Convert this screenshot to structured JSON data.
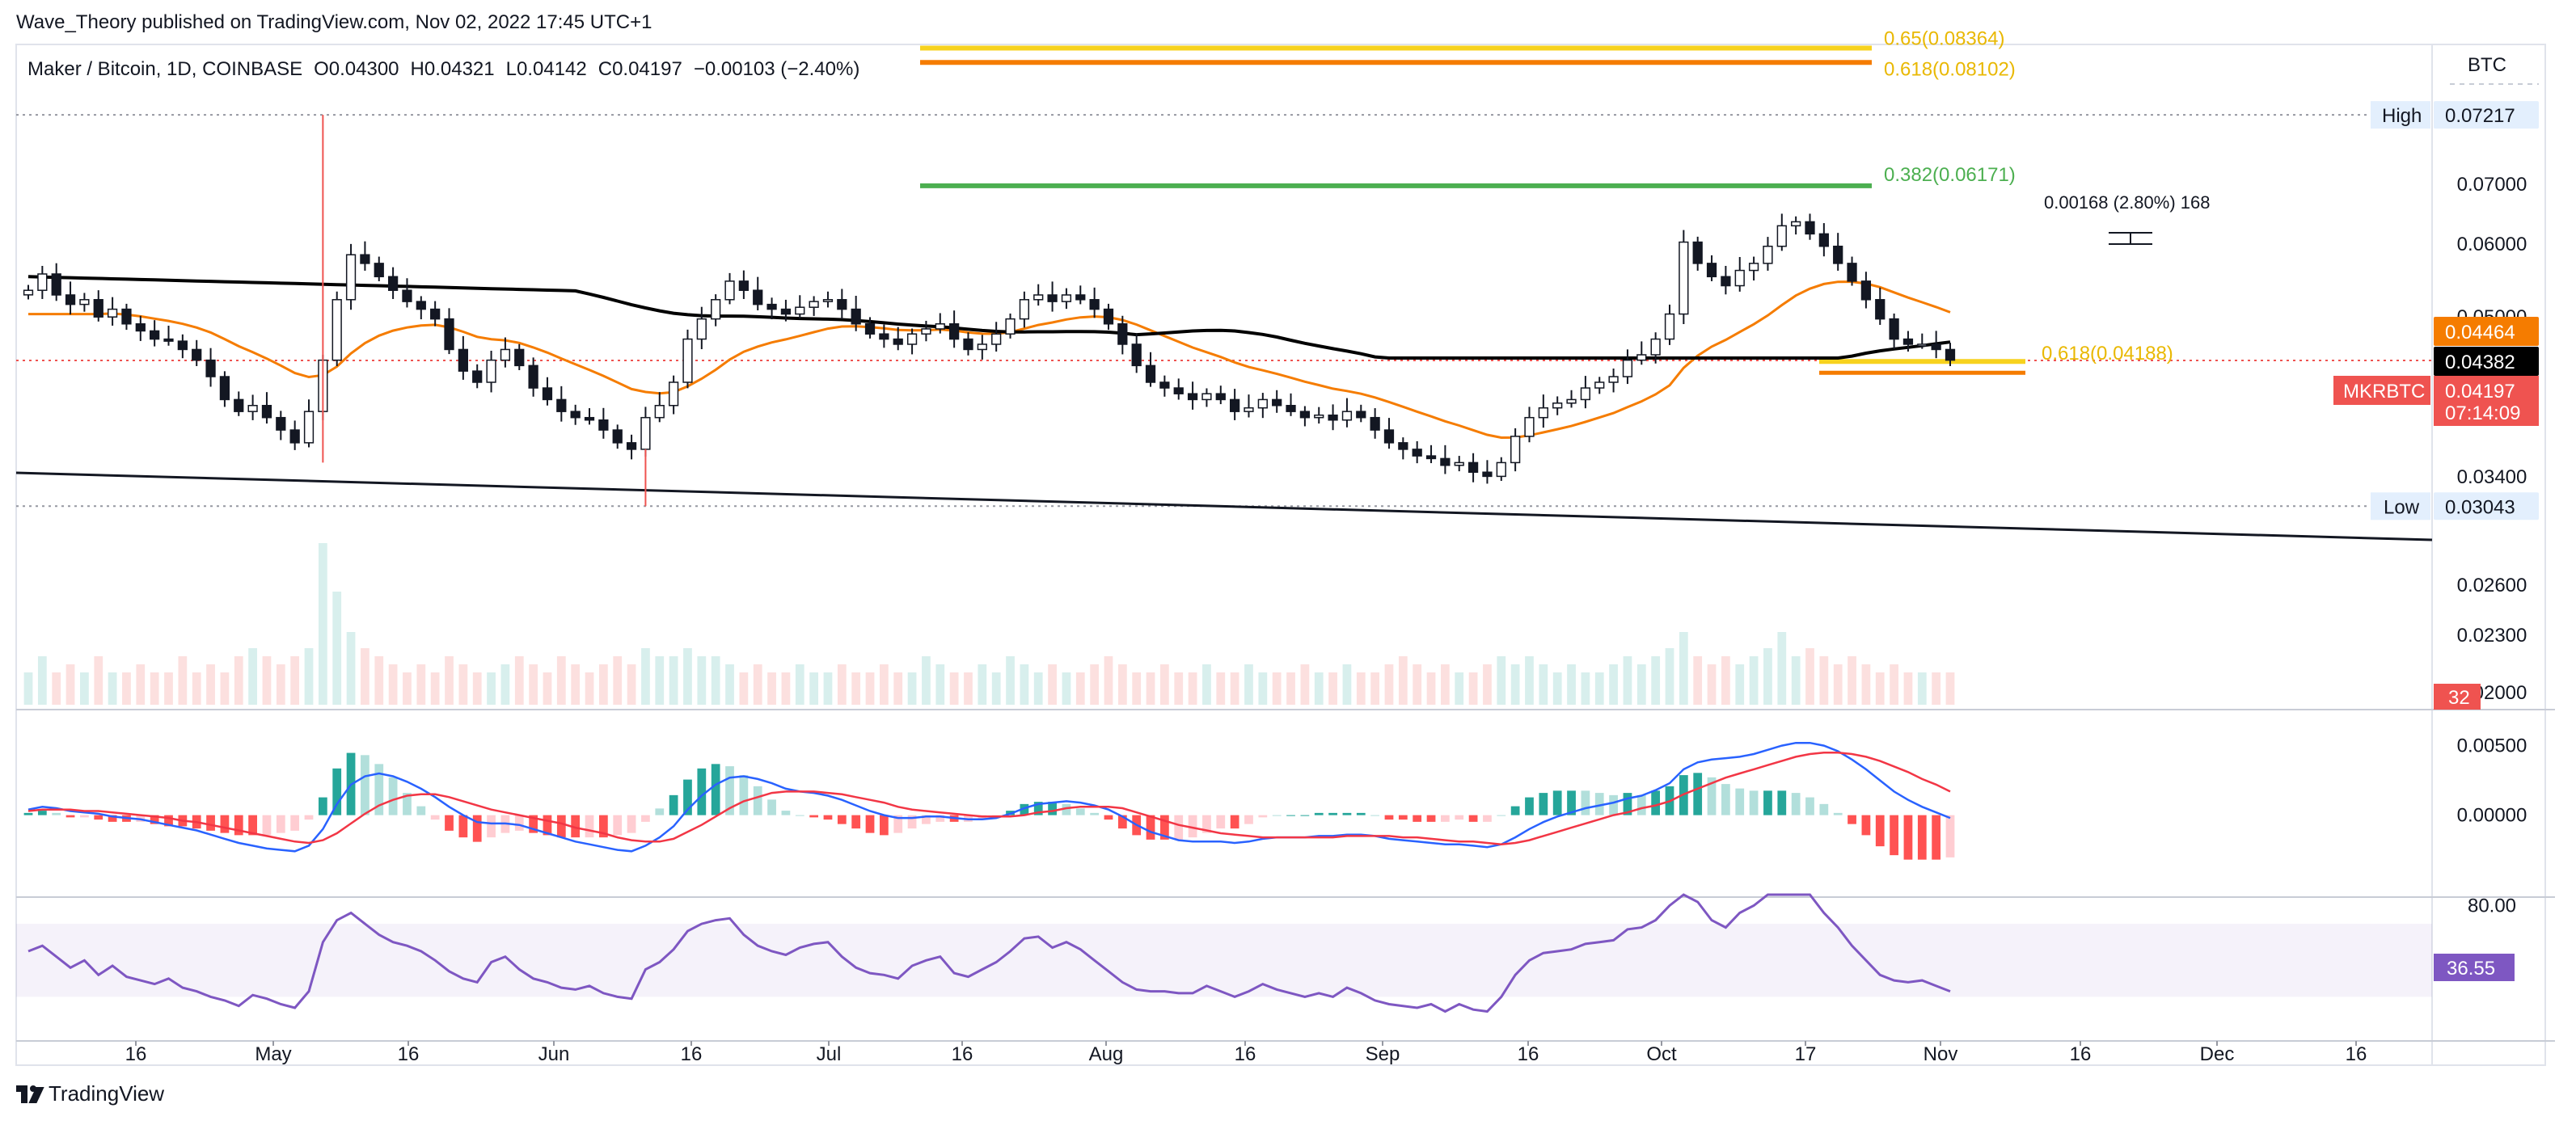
{
  "header": {
    "published": "Wave_Theory published on TradingView.com, Nov 02, 2022 17:45 UTC+1"
  },
  "symbol_info": {
    "name": "Maker / Bitcoin, 1D, COINBASE",
    "open": "O0.04300",
    "high": "H0.04321",
    "low": "L0.04142",
    "close": "C0.04197",
    "change": "−0.00103 (−2.40%)"
  },
  "footer": {
    "brand": "TradingView"
  },
  "colors": {
    "up": "#26a69a",
    "down": "#ef5350",
    "ema": "#f57c00",
    "sma": "#000000",
    "fib_gold": "#f7d21e",
    "fib_orange": "#f57c00",
    "fib_green": "#4caf50",
    "macd": "#2962ff",
    "signal": "#f23645",
    "rsi": "#7e57c2"
  },
  "chart_data": [
    {
      "type": "candlestick",
      "pane": "price",
      "title": "Maker / Bitcoin, 1D, COINBASE",
      "currency": "BTC",
      "scale": "log",
      "x_ticks": [
        "16",
        "May",
        "16",
        "Jun",
        "16",
        "Jul",
        "16",
        "Aug",
        "16",
        "Sep",
        "16",
        "Oct",
        "17",
        "Nov",
        "16",
        "Dec",
        "16"
      ],
      "y_ticks": [
        "0.07000",
        "0.06000",
        "0.05000",
        "0.03400",
        "0.02600",
        "0.02300",
        "0.02000"
      ],
      "labels": {
        "high_label": "High",
        "high_value": "0.07217",
        "low_label": "Low",
        "low_value": "0.03043",
        "ema_value": "0.04464",
        "sma_value": "0.04382",
        "symbol_tag": "MKRBTC",
        "last_price": "0.04197",
        "countdown": "07:14:09"
      },
      "fib_levels": [
        {
          "label": "0.65(0.08364)",
          "ratio": 0.65,
          "value": 0.08364
        },
        {
          "label": "0.618(0.08102)",
          "ratio": 0.618,
          "value": 0.08102
        },
        {
          "label": "0.382(0.06171)",
          "ratio": 0.382,
          "value": 0.06171
        },
        {
          "label": "0.618(0.04188)",
          "ratio": 0.618,
          "value": 0.04188
        }
      ],
      "annotation": "0.00168 (2.80%) 168",
      "high": 0.07217,
      "low": 0.03043,
      "last": 0.04197,
      "ema": 0.04464,
      "sma": 0.04382,
      "closes": [
        0.049,
        0.0508,
        0.0485,
        0.0475,
        0.048,
        0.0462,
        0.047,
        0.0455,
        0.0448,
        0.044,
        0.0438,
        0.043,
        0.042,
        0.0405,
        0.0385,
        0.0375,
        0.038,
        0.037,
        0.036,
        0.035,
        0.0375,
        0.042,
        0.048,
        0.053,
        0.052,
        0.0505,
        0.049,
        0.0478,
        0.047,
        0.046,
        0.043,
        0.041,
        0.04,
        0.042,
        0.043,
        0.0415,
        0.0395,
        0.0385,
        0.0375,
        0.037,
        0.0368,
        0.036,
        0.035,
        0.0345,
        0.037,
        0.038,
        0.04,
        0.044,
        0.046,
        0.048,
        0.05,
        0.049,
        0.0475,
        0.047,
        0.0465,
        0.0472,
        0.0478,
        0.048,
        0.047,
        0.0455,
        0.0445,
        0.044,
        0.0435,
        0.0445,
        0.045,
        0.0455,
        0.044,
        0.043,
        0.0435,
        0.0445,
        0.046,
        0.048,
        0.0485,
        0.0478,
        0.0485,
        0.048,
        0.047,
        0.0455,
        0.0435,
        0.0415,
        0.04,
        0.0395,
        0.039,
        0.0385,
        0.039,
        0.0385,
        0.0375,
        0.0378,
        0.0385,
        0.038,
        0.0375,
        0.037,
        0.0372,
        0.0368,
        0.0375,
        0.037,
        0.036,
        0.035,
        0.0345,
        0.034,
        0.0338,
        0.0333,
        0.0335,
        0.0328,
        0.0325,
        0.0335,
        0.0355,
        0.037,
        0.0378,
        0.0382,
        0.0385,
        0.0395,
        0.04,
        0.0405,
        0.042,
        0.0425,
        0.044,
        0.0465,
        0.0545,
        0.052,
        0.0505,
        0.0495,
        0.0512,
        0.052,
        0.054,
        0.0565,
        0.057,
        0.0555,
        0.054,
        0.052,
        0.05,
        0.048,
        0.046,
        0.044,
        0.0435,
        0.0435,
        0.043,
        0.042
      ],
      "volume": [
        0.2,
        0.3,
        0.2,
        0.25,
        0.2,
        0.3,
        0.2,
        0.2,
        0.25,
        0.2,
        0.2,
        0.3,
        0.2,
        0.25,
        0.2,
        0.3,
        0.35,
        0.3,
        0.25,
        0.3,
        0.35,
        1.0,
        0.7,
        0.45,
        0.35,
        0.3,
        0.25,
        0.2,
        0.25,
        0.2,
        0.3,
        0.25,
        0.2,
        0.2,
        0.25,
        0.3,
        0.25,
        0.2,
        0.3,
        0.25,
        0.2,
        0.25,
        0.3,
        0.25,
        0.35,
        0.3,
        0.3,
        0.35,
        0.3,
        0.3,
        0.25,
        0.2,
        0.25,
        0.2,
        0.2,
        0.25,
        0.2,
        0.2,
        0.25,
        0.2,
        0.2,
        0.25,
        0.2,
        0.2,
        0.3,
        0.25,
        0.2,
        0.2,
        0.25,
        0.2,
        0.3,
        0.25,
        0.2,
        0.25,
        0.2,
        0.2,
        0.25,
        0.3,
        0.25,
        0.2,
        0.2,
        0.25,
        0.2,
        0.2,
        0.25,
        0.2,
        0.2,
        0.25,
        0.2,
        0.2,
        0.2,
        0.25,
        0.2,
        0.2,
        0.25,
        0.2,
        0.2,
        0.25,
        0.3,
        0.25,
        0.2,
        0.25,
        0.2,
        0.2,
        0.25,
        0.3,
        0.25,
        0.3,
        0.25,
        0.2,
        0.25,
        0.2,
        0.2,
        0.25,
        0.3,
        0.25,
        0.3,
        0.35,
        0.45,
        0.3,
        0.25,
        0.3,
        0.25,
        0.3,
        0.35,
        0.45,
        0.3,
        0.35,
        0.3,
        0.25,
        0.3,
        0.25,
        0.2,
        0.25,
        0.2,
        0.2,
        0.2,
        0.2
      ],
      "volume_label": "32"
    },
    {
      "type": "line",
      "pane": "macd",
      "y_ticks": [
        "0.00500",
        "0.00000"
      ],
      "macd": [
        0.0004,
        0.0006,
        0.0005,
        0.0003,
        0.0002,
        0.0001,
        -0.0001,
        -0.0002,
        -0.0003,
        -0.0005,
        -0.0007,
        -0.0009,
        -0.0011,
        -0.0014,
        -0.0017,
        -0.002,
        -0.0022,
        -0.0024,
        -0.0025,
        -0.0026,
        -0.0022,
        -0.001,
        0.0008,
        0.0022,
        0.0028,
        0.003,
        0.0028,
        0.0024,
        0.0019,
        0.0013,
        0.0006,
        0.0,
        -0.0005,
        -0.0006,
        -0.0006,
        -0.0007,
        -0.001,
        -0.0013,
        -0.0016,
        -0.0019,
        -0.0021,
        -0.0023,
        -0.0025,
        -0.0026,
        -0.0022,
        -0.0016,
        -0.0008,
        0.0004,
        0.0014,
        0.0022,
        0.0027,
        0.0028,
        0.0026,
        0.0023,
        0.0019,
        0.0017,
        0.0016,
        0.0014,
        0.0011,
        0.0007,
        0.0003,
        0.0,
        -0.0002,
        -0.0002,
        -0.0001,
        -0.0001,
        -0.0002,
        -0.0003,
        -0.0003,
        -0.0002,
        0.0001,
        0.0005,
        0.0008,
        0.0009,
        0.001,
        0.0009,
        0.0007,
        0.0004,
        -0.0001,
        -0.0007,
        -0.0012,
        -0.0015,
        -0.0018,
        -0.0019,
        -0.0019,
        -0.0019,
        -0.002,
        -0.0019,
        -0.0017,
        -0.0016,
        -0.0016,
        -0.0016,
        -0.0015,
        -0.0015,
        -0.0014,
        -0.0014,
        -0.0015,
        -0.0017,
        -0.0018,
        -0.0019,
        -0.002,
        -0.0021,
        -0.0021,
        -0.0022,
        -0.0023,
        -0.0021,
        -0.0016,
        -0.001,
        -0.0005,
        -0.0001,
        0.0002,
        0.0005,
        0.0007,
        0.0009,
        0.0012,
        0.0014,
        0.0018,
        0.0023,
        0.0033,
        0.0038,
        0.004,
        0.0041,
        0.0042,
        0.0044,
        0.0047,
        0.005,
        0.0052,
        0.0052,
        0.005,
        0.0046,
        0.004,
        0.0033,
        0.0025,
        0.0017,
        0.0011,
        0.0006,
        0.0002,
        -0.0002
      ],
      "signal": [
        0.0003,
        0.0004,
        0.0004,
        0.0004,
        0.0003,
        0.0003,
        0.0002,
        0.0001,
        0.0,
        -0.0001,
        -0.0002,
        -0.0004,
        -0.0005,
        -0.0007,
        -0.0009,
        -0.0011,
        -0.0013,
        -0.0015,
        -0.0017,
        -0.0019,
        -0.002,
        -0.0018,
        -0.0013,
        -0.0006,
        0.0001,
        0.0007,
        0.0011,
        0.0014,
        0.0015,
        0.0015,
        0.0013,
        0.001,
        0.0007,
        0.0004,
        0.0002,
        0.0,
        -0.0002,
        -0.0004,
        -0.0006,
        -0.0009,
        -0.0011,
        -0.0013,
        -0.0016,
        -0.0018,
        -0.0019,
        -0.0019,
        -0.0017,
        -0.0012,
        -0.0007,
        -0.0001,
        0.0005,
        0.001,
        0.0013,
        0.0016,
        0.0017,
        0.0017,
        0.0017,
        0.0016,
        0.0015,
        0.0013,
        0.0011,
        0.0009,
        0.0006,
        0.0004,
        0.0003,
        0.0002,
        0.0001,
        0.0,
        -0.0001,
        -0.0001,
        -0.0001,
        0.0,
        0.0002,
        0.0003,
        0.0005,
        0.0006,
        0.0006,
        0.0006,
        0.0005,
        0.0002,
        -0.0001,
        -0.0004,
        -0.0007,
        -0.0009,
        -0.0011,
        -0.0013,
        -0.0014,
        -0.0015,
        -0.0016,
        -0.0016,
        -0.0016,
        -0.0016,
        -0.0016,
        -0.0016,
        -0.0015,
        -0.0015,
        -0.0015,
        -0.0015,
        -0.0016,
        -0.0016,
        -0.0017,
        -0.0018,
        -0.0019,
        -0.0019,
        -0.002,
        -0.0021,
        -0.002,
        -0.0018,
        -0.0015,
        -0.0012,
        -0.0009,
        -0.0006,
        -0.0003,
        0.0,
        0.0002,
        0.0005,
        0.0007,
        0.001,
        0.0015,
        0.0019,
        0.0023,
        0.0027,
        0.003,
        0.0033,
        0.0036,
        0.0039,
        0.0042,
        0.0044,
        0.0045,
        0.0045,
        0.0044,
        0.0042,
        0.0039,
        0.0035,
        0.0031,
        0.0026,
        0.0022,
        0.0017
      ]
    },
    {
      "type": "line",
      "pane": "rsi",
      "y_ticks": [
        "80.00"
      ],
      "band": [
        30,
        70
      ],
      "last_label": "36.55",
      "rsi": [
        55,
        58,
        52,
        46,
        50,
        42,
        47,
        41,
        39,
        37,
        40,
        35,
        33,
        30,
        28,
        25,
        31,
        29,
        26,
        24,
        33,
        60,
        72,
        76,
        70,
        64,
        60,
        58,
        55,
        50,
        44,
        40,
        38,
        49,
        52,
        45,
        40,
        38,
        35,
        34,
        36,
        32,
        30,
        29,
        45,
        49,
        56,
        66,
        70,
        72,
        73,
        64,
        58,
        55,
        53,
        57,
        59,
        60,
        52,
        46,
        43,
        42,
        40,
        47,
        50,
        52,
        43,
        41,
        45,
        49,
        55,
        62,
        63,
        57,
        60,
        56,
        50,
        44,
        38,
        34,
        33,
        33,
        32,
        32,
        36,
        33,
        30,
        33,
        37,
        34,
        32,
        30,
        32,
        30,
        35,
        32,
        28,
        26,
        25,
        24,
        26,
        22,
        26,
        23,
        22,
        30,
        42,
        50,
        54,
        55,
        56,
        59,
        60,
        61,
        67,
        68,
        72,
        80,
        98,
        82,
        72,
        68,
        76,
        80,
        90,
        98,
        96,
        86,
        76,
        68,
        58,
        50,
        42,
        39,
        38,
        39,
        36,
        33
      ],
      "data_is_approximate": true
    }
  ]
}
